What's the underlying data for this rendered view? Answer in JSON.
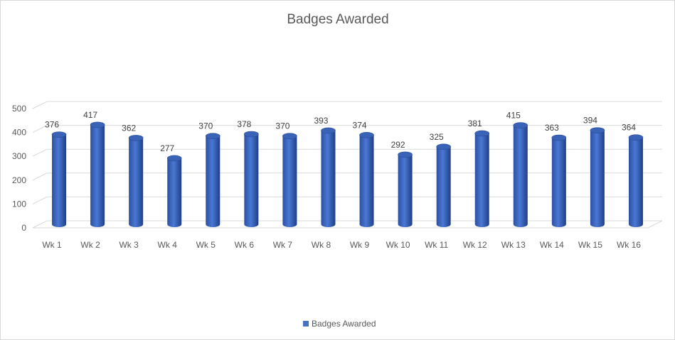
{
  "chart_data": {
    "type": "bar",
    "title": "Badges Awarded",
    "categories": [
      "Wk 1",
      "Wk 2",
      "Wk 3",
      "Wk 4",
      "Wk 5",
      "Wk 6",
      "Wk 7",
      "Wk 8",
      "Wk 9",
      "Wk 10",
      "Wk 11",
      "Wk 12",
      "Wk 13",
      "Wk 14",
      "Wk 15",
      "Wk 16"
    ],
    "series": [
      {
        "name": "Badges Awarded",
        "color": "#4472c4",
        "values": [
          376,
          417,
          362,
          277,
          370,
          378,
          370,
          393,
          374,
          292,
          325,
          381,
          415,
          363,
          394,
          364
        ]
      }
    ],
    "ylim": [
      0,
      500
    ],
    "yticks": [
      0,
      100,
      200,
      300,
      400,
      500
    ],
    "grid": true,
    "legend_position": "bottom",
    "data_labels": true,
    "bar_shape": "cylinder-3d"
  }
}
